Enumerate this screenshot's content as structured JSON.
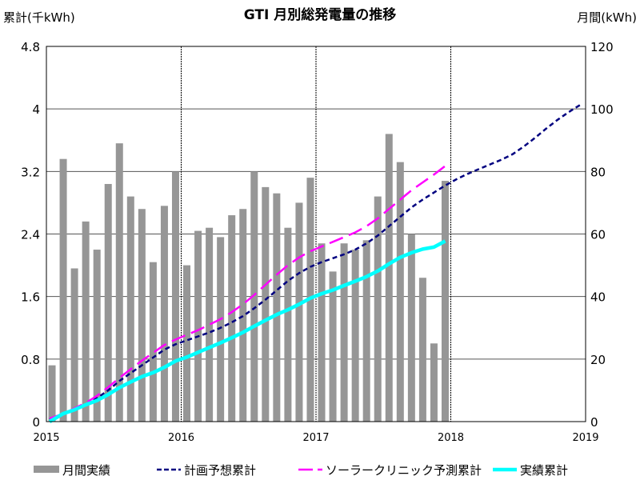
{
  "chart_data": {
    "type": "bar+line",
    "title": "GTI 月別総発電量の推移",
    "ylabel_left": "累計(千kWh)",
    "ylabel_right": "月間(kWh)",
    "x_ticks": [
      "2015",
      "2016",
      "2017",
      "2018",
      "2019"
    ],
    "xlim": [
      "2015-01",
      "2019-01"
    ],
    "ylim_left": [
      0,
      4.8
    ],
    "ylim_right": [
      0,
      120
    ],
    "y_ticks_left": [
      "0",
      "0.8",
      "1.6",
      "2.4",
      "3.2",
      "4",
      "4.8"
    ],
    "y_ticks_right": [
      "0",
      "20",
      "40",
      "60",
      "80",
      "100",
      "120"
    ],
    "grid": true,
    "legend_position": "bottom",
    "series": [
      {
        "name": "月間実績",
        "type": "bar",
        "axis": "right",
        "color": "#969696",
        "start": "2015-01",
        "values": [
          18,
          84,
          49,
          64,
          55,
          76,
          89,
          72,
          68,
          51,
          69,
          80,
          50,
          61,
          62,
          59,
          66,
          68,
          80,
          75,
          73,
          62,
          70,
          78,
          57,
          48,
          57,
          55,
          58,
          72,
          92,
          83,
          60,
          46,
          25,
          77
        ]
      },
      {
        "name": "計画予想累計",
        "type": "line",
        "axis": "left",
        "color": "#000080",
        "dash": "short",
        "start": "2015-01",
        "values": [
          0.03,
          0.1,
          0.16,
          0.22,
          0.3,
          0.4,
          0.52,
          0.62,
          0.72,
          0.82,
          0.92,
          0.99,
          1.04,
          1.09,
          1.14,
          1.2,
          1.27,
          1.35,
          1.45,
          1.56,
          1.68,
          1.8,
          1.9,
          1.98,
          2.04,
          2.09,
          2.14,
          2.2,
          2.28,
          2.38,
          2.5,
          2.62,
          2.74,
          2.84,
          2.93,
          3.02,
          3.1,
          3.17,
          3.23,
          3.29,
          3.35,
          3.42,
          3.52,
          3.63,
          3.75,
          3.86,
          3.96,
          4.05
        ]
      },
      {
        "name": "ソーラークリニック予測累計",
        "type": "line",
        "axis": "left",
        "color": "#FF00FF",
        "dash": "long",
        "start": "2015-01",
        "values": [
          0.04,
          0.1,
          0.17,
          0.24,
          0.33,
          0.44,
          0.56,
          0.67,
          0.78,
          0.88,
          0.98,
          1.05,
          1.11,
          1.17,
          1.24,
          1.31,
          1.4,
          1.5,
          1.62,
          1.75,
          1.88,
          2.0,
          2.1,
          2.18,
          2.24,
          2.3,
          2.36,
          2.42,
          2.5,
          2.6,
          2.72,
          2.84,
          2.96,
          3.06,
          3.16,
          3.27
        ]
      },
      {
        "name": "実績累計",
        "type": "line",
        "axis": "left",
        "color": "#00FFFF",
        "dash": "solid",
        "start": "2015-01",
        "values": [
          0.018,
          0.102,
          0.151,
          0.215,
          0.27,
          0.346,
          0.435,
          0.507,
          0.575,
          0.626,
          0.695,
          0.775,
          0.825,
          0.886,
          0.948,
          1.007,
          1.073,
          1.141,
          1.221,
          1.296,
          1.369,
          1.431,
          1.501,
          1.579,
          1.636,
          1.684,
          1.741,
          1.796,
          1.854,
          1.926,
          2.018,
          2.101,
          2.161,
          2.207,
          2.232,
          2.309
        ]
      }
    ]
  }
}
